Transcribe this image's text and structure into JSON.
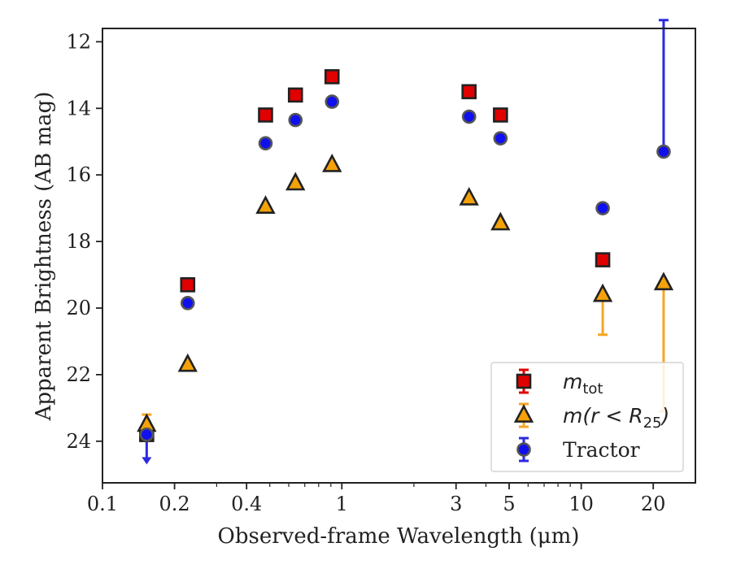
{
  "chart_data": {
    "type": "scatter",
    "xlabel": "Observed-frame Wavelength (μm)",
    "ylabel": "Apparent Brightness (AB mag)",
    "xscale": "log",
    "xlim": [
      0.1,
      30
    ],
    "ylim": [
      25.25,
      11.6
    ],
    "y_inverted": true,
    "x_ticks": [
      {
        "value": 0.1,
        "label": "0.1"
      },
      {
        "value": 0.2,
        "label": "0.2"
      },
      {
        "value": 0.4,
        "label": "0.4"
      },
      {
        "value": 1,
        "label": "1"
      },
      {
        "value": 3,
        "label": "3"
      },
      {
        "value": 5,
        "label": "5"
      },
      {
        "value": 10,
        "label": "10"
      },
      {
        "value": 20,
        "label": "20"
      }
    ],
    "y_ticks": [
      {
        "value": 12,
        "label": "12"
      },
      {
        "value": 14,
        "label": "14"
      },
      {
        "value": 16,
        "label": "16"
      },
      {
        "value": 18,
        "label": "18"
      },
      {
        "value": 20,
        "label": "20"
      },
      {
        "value": 22,
        "label": "22"
      },
      {
        "value": 24,
        "label": "24"
      }
    ],
    "grid": false,
    "legend_position": "bottom-right",
    "series": [
      {
        "name": "m_tot",
        "legend_main": "m",
        "legend_sub": "tot",
        "marker": "square",
        "color": "#e00000",
        "errcolor": "#e00000",
        "points": [
          {
            "x": 0.153,
            "y": 23.8
          },
          {
            "x": 0.227,
            "y": 19.3
          },
          {
            "x": 0.48,
            "y": 14.2
          },
          {
            "x": 0.64,
            "y": 13.6
          },
          {
            "x": 0.91,
            "y": 13.05
          },
          {
            "x": 3.4,
            "y": 13.5
          },
          {
            "x": 4.6,
            "y": 14.2
          },
          {
            "x": 12.3,
            "y": 18.55
          }
        ]
      },
      {
        "name": "m(r < R25)",
        "legend_main": "m(r < R",
        "legend_sub": "25",
        "legend_tail": ")",
        "marker": "triangle",
        "color": "#f5a20a",
        "errcolor": "#f5a623",
        "points": [
          {
            "x": 0.153,
            "y": 23.5,
            "err_lo": 0.3,
            "err_hi": 0.3
          },
          {
            "x": 0.227,
            "y": 21.7
          },
          {
            "x": 0.48,
            "y": 16.95
          },
          {
            "x": 0.64,
            "y": 16.25
          },
          {
            "x": 0.91,
            "y": 15.7
          },
          {
            "x": 3.4,
            "y": 16.7
          },
          {
            "x": 4.6,
            "y": 17.45
          },
          {
            "x": 12.3,
            "y": 19.6,
            "err_lo": 0,
            "err_hi": 1.2
          },
          {
            "x": 22.1,
            "y": 19.25,
            "err_lo": 0,
            "err_hi": 3.85
          }
        ]
      },
      {
        "name": "Tractor",
        "legend_main": "Tractor",
        "marker": "circle",
        "color": "#1010ee",
        "errcolor": "#2a2ae0",
        "points": [
          {
            "x": 0.153,
            "y": 23.8,
            "upper_limit": true
          },
          {
            "x": 0.227,
            "y": 19.85
          },
          {
            "x": 0.48,
            "y": 15.05
          },
          {
            "x": 0.64,
            "y": 14.35
          },
          {
            "x": 0.91,
            "y": 13.8
          },
          {
            "x": 3.4,
            "y": 14.25
          },
          {
            "x": 4.6,
            "y": 14.9
          },
          {
            "x": 12.3,
            "y": 17.0
          },
          {
            "x": 22.1,
            "y": 15.3,
            "err_lo": 3.95,
            "err_hi": 0
          }
        ]
      }
    ]
  }
}
